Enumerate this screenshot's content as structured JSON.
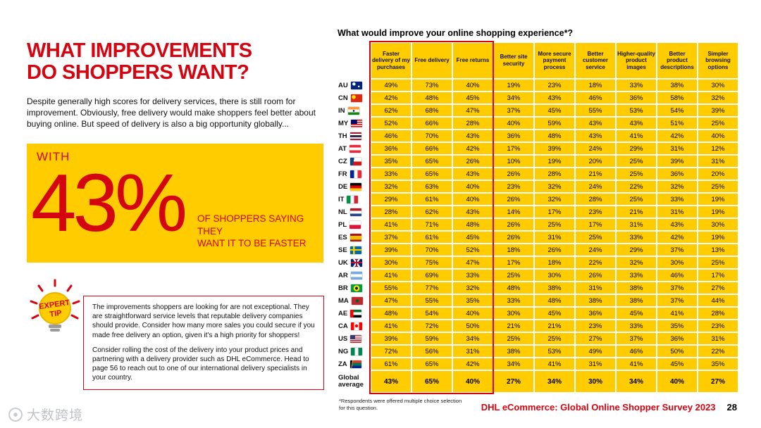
{
  "colors": {
    "dhl_red": "#d40511",
    "dhl_yellow": "#ffcc00"
  },
  "page": {
    "title_line1": "WHAT IMPROVEMENTS",
    "title_line2": "DO SHOPPERS WANT?",
    "intro": "Despite generally high scores for delivery services, there is still room for improvement. Obviously, free delivery would make shoppers feel better about buying online. But speed of delivery is also a big opportunity globally...",
    "highlight": {
      "prefix": "WITH",
      "stat": "43%",
      "suffix_line1": "OF SHOPPERS SAYING THEY",
      "suffix_line2": "WANT IT TO BE FASTER"
    },
    "expert_tip": {
      "label_line1": "EXPERT",
      "label_line2": "TIP",
      "para1": "The improvements shoppers are looking for are not exceptional. They are straightforward service levels that reputable delivery companies should provide. Consider how many more sales you could secure if you made free delivery an option, given it's a high priority for shoppers!",
      "para2": "Consider rolling the cost of the delivery into your product prices and partnering with a delivery provider such as DHL eCommerce. Head to page 56 to reach out to one of our international delivery specialists in your country."
    },
    "footnote": "*Respondents were offered multiple choice selection for this question.",
    "footer_source": "DHL eCommerce: Global Online Shopper Survey 2023",
    "page_number": "28",
    "watermark": "大数跨境"
  },
  "chart_data": {
    "type": "table",
    "title": "What would improve your online shopping experience*?",
    "columns": [
      "Faster delivery of my purchases",
      "Free delivery",
      "Free returns",
      "Better site security",
      "More secure payment process",
      "Better customer service",
      "Higher-quality product images",
      "Better product descriptions",
      "Simpler browsing options"
    ],
    "highlighted_columns": [
      0,
      1,
      2
    ],
    "rows": [
      {
        "code": "AU",
        "flag": "radial-gradient(circle at 27% 30%,#fff 0 2px,transparent 2.5px),radial-gradient(circle at 70% 62%,#fff 0 1px,transparent 1.5px),#00247d",
        "values": [
          "49%",
          "73%",
          "40%",
          "19%",
          "23%",
          "18%",
          "33%",
          "38%",
          "30%"
        ]
      },
      {
        "code": "CN",
        "flag": "radial-gradient(circle at 25% 35%,#ffde00 0 2.5px,transparent 3px),#de2910",
        "values": [
          "42%",
          "48%",
          "45%",
          "34%",
          "43%",
          "46%",
          "36%",
          "58%",
          "32%"
        ]
      },
      {
        "code": "IN",
        "flag": "radial-gradient(circle at 50% 50%,#000080 0 1px,transparent 1.5px),linear-gradient(#ff9933 0 33%,#fff 33% 67%,#138808 67%)",
        "values": [
          "62%",
          "68%",
          "47%",
          "37%",
          "45%",
          "55%",
          "53%",
          "54%",
          "39%"
        ]
      },
      {
        "code": "MY",
        "flag": "linear-gradient(#010066,#010066) left top/55% 55% no-repeat,repeating-linear-gradient(#cc0001 0 1.5px,#fff 1.5px 3px)",
        "values": [
          "52%",
          "66%",
          "28%",
          "40%",
          "59%",
          "43%",
          "43%",
          "51%",
          "25%"
        ]
      },
      {
        "code": "TH",
        "flag": "linear-gradient(#a51931 0 18%,#f4f5f8 18% 36%,#2d2a4a 36% 64%,#f4f5f8 64% 82%,#a51931 82%)",
        "values": [
          "46%",
          "70%",
          "43%",
          "36%",
          "48%",
          "43%",
          "41%",
          "42%",
          "40%"
        ]
      },
      {
        "code": "AT",
        "flag": "linear-gradient(#ed2939 0 33%,#fff 33% 67%,#ed2939 67%)",
        "values": [
          "36%",
          "66%",
          "42%",
          "17%",
          "39%",
          "24%",
          "29%",
          "31%",
          "12%"
        ]
      },
      {
        "code": "CZ",
        "flag": "linear-gradient(100deg,#11457e 0 32%,transparent 32%),linear-gradient(#fff 0 50%,#d7141a 50%)",
        "values": [
          "35%",
          "65%",
          "26%",
          "10%",
          "19%",
          "20%",
          "25%",
          "39%",
          "31%"
        ]
      },
      {
        "code": "FR",
        "flag": "linear-gradient(90deg,#002395 0 33%,#fff 33% 67%,#ed2939 67%)",
        "values": [
          "33%",
          "65%",
          "43%",
          "26%",
          "28%",
          "21%",
          "25%",
          "36%",
          "20%"
        ]
      },
      {
        "code": "DE",
        "flag": "linear-gradient(#000 0 33%,#dd0000 33% 67%,#ffce00 67%)",
        "values": [
          "32%",
          "63%",
          "40%",
          "23%",
          "32%",
          "24%",
          "22%",
          "32%",
          "25%"
        ]
      },
      {
        "code": "IT",
        "flag": "linear-gradient(90deg,#009246 0 33%,#fff 33% 67%,#ce2b37 67%)",
        "values": [
          "29%",
          "61%",
          "40%",
          "26%",
          "32%",
          "28%",
          "25%",
          "33%",
          "19%"
        ]
      },
      {
        "code": "NL",
        "flag": "linear-gradient(#ae1c28 0 33%,#fff 33% 67%,#21468b 67%)",
        "values": [
          "28%",
          "62%",
          "43%",
          "14%",
          "17%",
          "23%",
          "21%",
          "31%",
          "19%"
        ]
      },
      {
        "code": "PL",
        "flag": "linear-gradient(#fff 0 50%,#dc143c 50%)",
        "values": [
          "41%",
          "71%",
          "48%",
          "26%",
          "25%",
          "17%",
          "31%",
          "43%",
          "30%"
        ]
      },
      {
        "code": "ES",
        "flag": "linear-gradient(#aa151b 0 25%,#f1bf00 25% 75%,#aa151b 75%)",
        "values": [
          "37%",
          "61%",
          "45%",
          "26%",
          "31%",
          "25%",
          "33%",
          "42%",
          "19%"
        ]
      },
      {
        "code": "SE",
        "flag": "linear-gradient(#fecc00,#fecc00) 0 50%/100% 22% no-repeat,linear-gradient(#fecc00,#fecc00) 33% 0/16% 100% no-repeat,linear-gradient(#006aa7,#006aa7)",
        "values": [
          "39%",
          "70%",
          "52%",
          "18%",
          "26%",
          "24%",
          "29%",
          "37%",
          "13%"
        ]
      },
      {
        "code": "UK",
        "flag": "linear-gradient(#c8102e,#c8102e) 50% 50%/100% 22% no-repeat,linear-gradient(#c8102e,#c8102e) 50% 50%/14% 100% no-repeat,linear-gradient(55deg,transparent 44%,#fff 44% 56%,transparent 56%),linear-gradient(-55deg,transparent 44%,#fff 44% 56%,transparent 56%),linear-gradient(#012169,#012169)",
        "values": [
          "30%",
          "75%",
          "47%",
          "17%",
          "18%",
          "22%",
          "32%",
          "30%",
          "25%"
        ]
      },
      {
        "code": "AR",
        "flag": "linear-gradient(#74acdf 0 33%,#fff 33% 67%,#74acdf 67%)",
        "values": [
          "41%",
          "69%",
          "33%",
          "25%",
          "30%",
          "26%",
          "33%",
          "46%",
          "17%"
        ]
      },
      {
        "code": "BR",
        "flag": "radial-gradient(circle at 50% 50%,#002776 0 2px,#ffdf00 2px 4px,transparent 4.5px),#009c3b",
        "values": [
          "55%",
          "77%",
          "32%",
          "48%",
          "38%",
          "31%",
          "38%",
          "37%",
          "27%"
        ]
      },
      {
        "code": "MA",
        "flag": "radial-gradient(circle at 50% 50%,#006233 0 2px,transparent 2.5px),#c1272d",
        "values": [
          "47%",
          "55%",
          "35%",
          "33%",
          "48%",
          "38%",
          "38%",
          "37%",
          "44%"
        ]
      },
      {
        "code": "AE",
        "flag": "linear-gradient(90deg,#ff0000 0 28%,transparent 28%),linear-gradient(#00732f 0 33%,#fff 33% 67%,#000 67%)",
        "values": [
          "48%",
          "54%",
          "40%",
          "30%",
          "45%",
          "36%",
          "45%",
          "41%",
          "28%"
        ]
      },
      {
        "code": "CA",
        "flag": "linear-gradient(90deg,#ff0000 0 28%,transparent 28% 72%,#ff0000 72%),radial-gradient(circle at 50% 45%,#ff0000 0 2px,transparent 2.5px),linear-gradient(#fff,#fff)",
        "values": [
          "41%",
          "72%",
          "50%",
          "21%",
          "21%",
          "23%",
          "33%",
          "35%",
          "23%"
        ]
      },
      {
        "code": "US",
        "flag": "linear-gradient(#3c3b6e,#3c3b6e) left top/45% 55% no-repeat,repeating-linear-gradient(#b22234 0 1.2px,#fff 1.2px 2.4px)",
        "values": [
          "39%",
          "59%",
          "34%",
          "25%",
          "25%",
          "27%",
          "37%",
          "36%",
          "31%"
        ]
      },
      {
        "code": "NG",
        "flag": "linear-gradient(90deg,#008751 0 33%,#fff 33% 67%,#008751 67%)",
        "values": [
          "72%",
          "56%",
          "31%",
          "38%",
          "53%",
          "49%",
          "46%",
          "50%",
          "22%"
        ]
      },
      {
        "code": "ZA",
        "flag": "linear-gradient(100deg,#000 0 18%,#fcb514 18% 23%,transparent 23%),linear-gradient(#de3831 0 30%,transparent 30% 70%,#002395 70%),linear-gradient(#007a4d,#007a4d)",
        "values": [
          "61%",
          "65%",
          "42%",
          "34%",
          "41%",
          "31%",
          "41%",
          "45%",
          "35%"
        ]
      }
    ],
    "global_average": {
      "label": "Global average",
      "values": [
        "43%",
        "65%",
        "40%",
        "27%",
        "34%",
        "30%",
        "34%",
        "40%",
        "27%"
      ]
    }
  }
}
